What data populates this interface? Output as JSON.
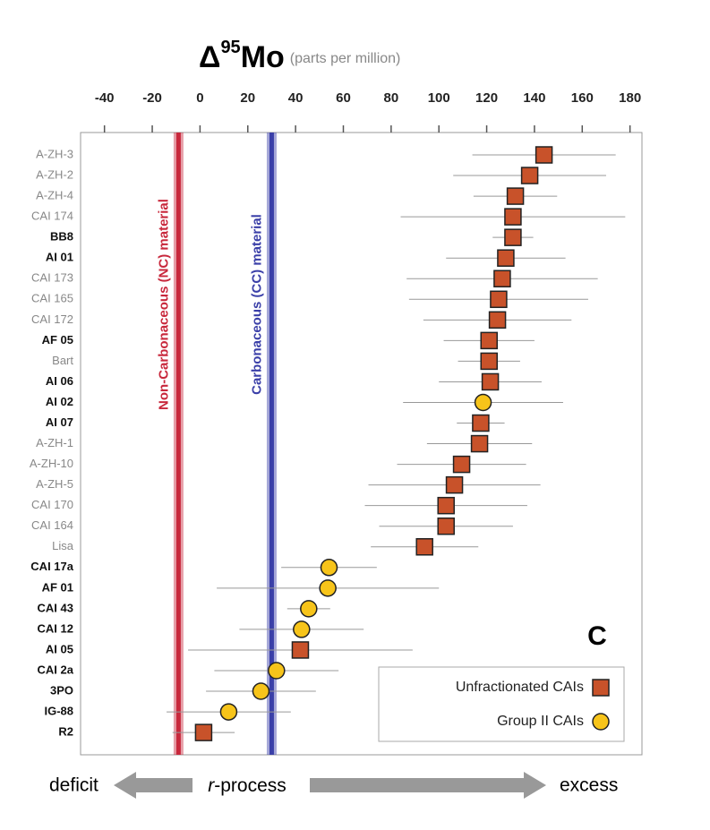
{
  "chart_data": {
    "type": "scatter",
    "title": {
      "symbol": "Δ",
      "superscript": "95",
      "element": "Mo",
      "unit": "(parts per million)"
    },
    "panel_label": "C",
    "categories": [
      "A-ZH-3",
      "A-ZH-2",
      "A-ZH-4",
      "CAI 174",
      "BB8",
      "AI 01",
      "CAI 173",
      "CAI 165",
      "CAI 172",
      "AF 05",
      "Bart",
      "AI 06",
      "AI 02",
      "AI 07",
      "A-ZH-1",
      "A-ZH-10",
      "A-ZH-5",
      "CAI 170",
      "CAI 164",
      "Lisa",
      "CAI 17a",
      "AF 01",
      "CAI 43",
      "CAI 12",
      "AI 05",
      "CAI 2a",
      "3PO",
      "IG-88",
      "R2"
    ],
    "bold": [
      false,
      false,
      false,
      false,
      true,
      true,
      false,
      false,
      false,
      true,
      false,
      true,
      true,
      true,
      false,
      false,
      false,
      false,
      false,
      false,
      true,
      true,
      true,
      true,
      true,
      true,
      true,
      true,
      true
    ],
    "series": [
      {
        "name": "Unfractionated CAIs",
        "marker": "square",
        "color": "#c8522a",
        "values": [
          144,
          138,
          132,
          131,
          131,
          128,
          126.5,
          125,
          124.5,
          121,
          121,
          121.5,
          null,
          117.5,
          117,
          109.5,
          106.5,
          103,
          103,
          94,
          null,
          null,
          null,
          null,
          42,
          null,
          null,
          null,
          1.5
        ],
        "errors": [
          30,
          32,
          17.5,
          47,
          8.5,
          25,
          40,
          37.5,
          31,
          19,
          13,
          21.5,
          null,
          10,
          22,
          27,
          36,
          34,
          28,
          22.5,
          null,
          null,
          null,
          null,
          47,
          null,
          null,
          null,
          13
        ]
      },
      {
        "name": "Group II CAIs",
        "marker": "circle",
        "color": "#f7c41a",
        "values": [
          null,
          null,
          null,
          null,
          null,
          null,
          null,
          null,
          null,
          null,
          null,
          null,
          118.5,
          null,
          null,
          null,
          null,
          null,
          null,
          null,
          54,
          53.5,
          45.5,
          42.5,
          null,
          32,
          25.5,
          12,
          null
        ],
        "errors": [
          null,
          null,
          null,
          null,
          null,
          null,
          null,
          null,
          null,
          null,
          null,
          null,
          33.5,
          null,
          null,
          null,
          null,
          null,
          null,
          null,
          20,
          46.5,
          9,
          26,
          null,
          26,
          23,
          26,
          null
        ]
      }
    ],
    "reference_lines": [
      {
        "label": "Non-Carbonaceous (NC) material",
        "value": -9,
        "color": "#c8283c"
      },
      {
        "label": "Carbonaceous (CC) material",
        "value": 30,
        "color": "#3a3fa8"
      }
    ],
    "xlim": [
      -50,
      185
    ],
    "xticks": [
      -40,
      -20,
      0,
      20,
      40,
      60,
      80,
      100,
      120,
      140,
      160,
      180
    ],
    "arrow": {
      "left": "deficit",
      "italic": "r",
      "middle": "-process",
      "right": "excess"
    }
  }
}
